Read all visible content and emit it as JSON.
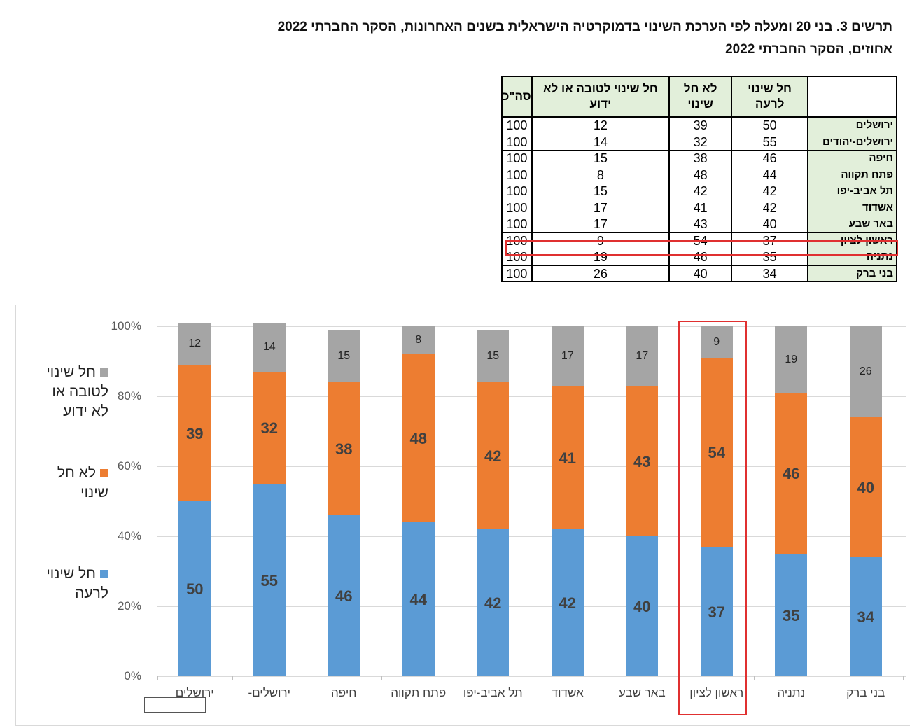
{
  "title": {
    "line1": "תרשים 3. בני 20 ומעלה לפי הערכת השינוי בדמוקרטיה הישראלית בשנים האחרונות, הסקר החברתי 2022",
    "line2": "אחוזים, הסקר החברתי 2022"
  },
  "table": {
    "headers": [
      "",
      "חל שינוי לרעה",
      "לא חל שינוי",
      "חל שינוי לטובה או לא ידוע",
      "סה\"כ"
    ],
    "rows": [
      [
        "ירושלים",
        "50",
        "39",
        "12",
        "100"
      ],
      [
        "ירושלים-יהודים",
        "55",
        "32",
        "14",
        "100"
      ],
      [
        "חיפה",
        "46",
        "38",
        "15",
        "100"
      ],
      [
        "פתח תקווה",
        "44",
        "48",
        "8",
        "100"
      ],
      [
        "תל אביב-יפו",
        "42",
        "42",
        "15",
        "100"
      ],
      [
        "אשדוד",
        "42",
        "41",
        "17",
        "100"
      ],
      [
        "באר שבע",
        "40",
        "43",
        "17",
        "100"
      ],
      [
        "ראשון לציון",
        "37",
        "54",
        "9",
        "100"
      ],
      [
        "נתניה",
        "35",
        "46",
        "19",
        "100"
      ],
      [
        "בני ברק",
        "34",
        "40",
        "26",
        "100"
      ]
    ],
    "highlighted_row": 7
  },
  "chart_data": {
    "type": "bar",
    "stacked": true,
    "percent": true,
    "categories": [
      "ירושלים",
      "ירושלים-",
      "חיפה",
      "פתח תקווה",
      "תל אביב-יפו",
      "אשדוד",
      "באר שבע",
      "ראשון לציון",
      "נתניה",
      "בני ברק"
    ],
    "series": [
      {
        "name": "חל שינוי לרעה",
        "color": "#5b9bd5",
        "values": [
          50,
          55,
          46,
          44,
          42,
          42,
          40,
          37,
          35,
          34
        ]
      },
      {
        "name": "לא חל שינוי",
        "color": "#ed7d31",
        "values": [
          39,
          32,
          38,
          48,
          42,
          41,
          43,
          54,
          46,
          40
        ]
      },
      {
        "name": "חל שינוי לטובה או לא ידוע",
        "color": "#a5a5a5",
        "values": [
          12,
          14,
          15,
          8,
          15,
          17,
          17,
          9,
          19,
          26
        ]
      }
    ],
    "yticks": [
      "0%",
      "20%",
      "40%",
      "60%",
      "80%",
      "100%"
    ],
    "ylim": [
      0,
      100
    ],
    "legend_position": "left",
    "highlighted_category": 7
  }
}
